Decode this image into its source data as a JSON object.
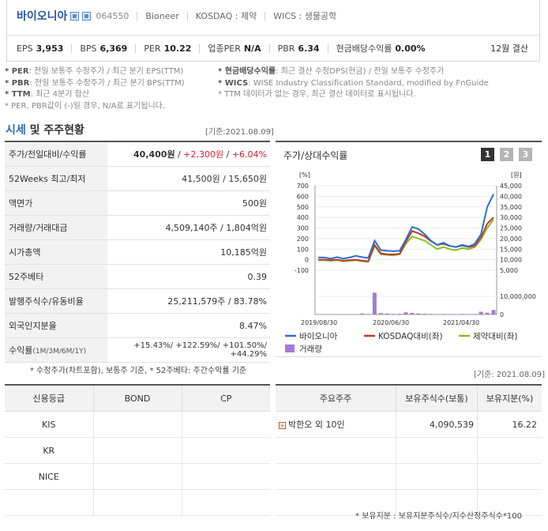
{
  "header": {
    "company_name": "바이오니아",
    "code": "064550",
    "english_name": "Bioneer",
    "market": "KOSDAQ : 제약",
    "wics": "WICS : 생물공학",
    "metrics": [
      {
        "key": "EPS",
        "value": "3,953"
      },
      {
        "key": "BPS",
        "value": "6,369"
      },
      {
        "key": "PER",
        "value": "10.22"
      },
      {
        "key": "업종PER",
        "value": "N/A"
      },
      {
        "key": "PBR",
        "value": "6.34"
      },
      {
        "key": "현금배당수익률",
        "value": "0.00%"
      }
    ],
    "fiscal_year": "12월 결산"
  },
  "notes_left": [
    {
      "bold": "* PER",
      "text": ": 전일 보통주 수정주가 / 최근 분기 EPS(TTM)"
    },
    {
      "bold": "* PBR",
      "text": ": 전일 보통주 수정주가 / 최근 분기 BPS(TTM)"
    },
    {
      "bold": "* TTM",
      "text": ": 최근 4분기 합산"
    },
    {
      "bold": "",
      "text": "* PER, PBR값이 (-)일 경우, N/A로 표기됩니다."
    }
  ],
  "notes_right": [
    {
      "bold": "* 현금배당수익률",
      "text": ": 최근 결산 수정DPS(현금) / 전일 보통주 수정주가"
    },
    {
      "bold": "* WICS",
      "text": ": WISE Industry Classification Standard, modified by FnGuide"
    },
    {
      "bold": "",
      "text": "* TTM 데이터가 없는 경우, 최근 결산 데이터로 표시됩니다."
    }
  ],
  "section": {
    "title_blue": "시세",
    "title_rest": " 및 주주현황",
    "date": "[기준:2021.08.09]"
  },
  "price_table": [
    {
      "key": "주가/전일대비/수익률",
      "v1": "40,400원",
      "v2": "+2,300원",
      "v3": "+6.04%"
    },
    {
      "key": "52Weeks 최고/최저",
      "value": "41,500원 / 15,650원"
    },
    {
      "key": "액면가",
      "value": "500원"
    },
    {
      "key": "거래량/거래대금",
      "value": "4,509,140주 / 1,804억원"
    },
    {
      "key": "시가총액",
      "value": "10,185억원"
    },
    {
      "key": "52주베타",
      "value": "0.39"
    },
    {
      "key": "발행주식수/유동비율",
      "value": "25,211,579주 / 83.78%"
    },
    {
      "key": "외국인지분율",
      "value": "8.47%"
    },
    {
      "key": "수익률",
      "key_small": "(1M/3M/6M/1Y)",
      "value": "+15.43%/ +122.59%/ +101.50%/ +44.29%"
    }
  ],
  "price_footnote": "* 수정주가(차트포함), 보통주 기준, * 52주베타: 주간수익률 기준",
  "chart": {
    "title": "주가/상대수익률",
    "tabs": [
      "1",
      "2",
      "3"
    ],
    "active_tab": 0,
    "left_unit": "[%]",
    "right_unit": "[원]",
    "left_ticks": [
      "700",
      "600",
      "500",
      "400",
      "300",
      "200",
      "100",
      "0",
      "-100"
    ],
    "right_ticks": [
      "45,000",
      "40,000",
      "35,000",
      "30,000",
      "25,000",
      "20,000",
      "15,000",
      "10,000",
      "5,000"
    ],
    "volume_tick_top": "10,000,000",
    "volume_tick_zero": "0",
    "x_labels": [
      "2019/08/30",
      "2020/06/30",
      "2021/04/30"
    ],
    "legend": [
      {
        "name": "바이오니아",
        "color": "#2b6fd4"
      },
      {
        "name": "KOSDAQ대비(좌)",
        "color": "#c0392b"
      },
      {
        "name": "제약대비(좌)",
        "color": "#8bbf1f"
      },
      {
        "name": "거래량",
        "color": "#a07cd8"
      }
    ]
  },
  "chart_data": {
    "type": "line",
    "x_start": "2019/08/30",
    "x_labels": [
      "2019/08/30",
      "2020/06/30",
      "2021/04/30"
    ],
    "left_axis": {
      "label": "[%]",
      "ylim": [
        -100,
        700
      ]
    },
    "right_axis": {
      "label": "[원]",
      "ylim": [
        5000,
        45000
      ]
    },
    "series": [
      {
        "name": "바이오니아",
        "axis": "right",
        "values": [
          11000,
          11000,
          10500,
          11200,
          10500,
          11000,
          11800,
          11200,
          10800,
          19000,
          14500,
          14200,
          14000,
          14200,
          19500,
          25500,
          24500,
          22000,
          19000,
          17000,
          18000,
          16500,
          16000,
          17000,
          16200,
          17500,
          22000,
          35000,
          41000
        ]
      },
      {
        "name": "KOSDAQ대비(좌)",
        "axis": "left",
        "values": [
          0,
          0,
          -5,
          0,
          -10,
          -5,
          0,
          -10,
          -15,
          140,
          60,
          50,
          50,
          55,
          170,
          270,
          250,
          220,
          175,
          140,
          150,
          130,
          120,
          135,
          120,
          130,
          210,
          340,
          400
        ]
      },
      {
        "name": "제약대비(좌)",
        "axis": "left",
        "values": [
          -5,
          -5,
          -10,
          -5,
          -15,
          -10,
          -5,
          -15,
          -20,
          130,
          50,
          45,
          40,
          50,
          150,
          220,
          200,
          180,
          140,
          100,
          120,
          100,
          90,
          110,
          100,
          120,
          190,
          300,
          380
        ]
      },
      {
        "name": "거래량",
        "axis": "volume",
        "values": [
          0,
          0,
          0,
          0,
          0,
          0,
          0,
          500000,
          300000,
          12000000,
          800000,
          500000,
          300000,
          400000,
          1200000,
          900000,
          600000,
          400000,
          300000,
          200000,
          300000,
          200000,
          200000,
          300000,
          200000,
          300000,
          1500000,
          1000000,
          2500000
        ]
      }
    ]
  },
  "date_right": "[기준: 2021.08.09]",
  "credit_table": {
    "headers": [
      "신용등급",
      "BOND",
      "CP"
    ],
    "rows": [
      [
        "KIS",
        "",
        ""
      ],
      [
        "KR",
        "",
        ""
      ],
      [
        "NICE",
        "",
        ""
      ]
    ]
  },
  "shareholder_table": {
    "headers": [
      "주요주주",
      "보유주식수(보통)",
      "보유지분(%)"
    ],
    "rows": [
      {
        "name": "박한오 외 10인",
        "shares": "4,090,539",
        "pct": "16.22"
      },
      {
        "name": "",
        "shares": "",
        "pct": ""
      },
      {
        "name": "",
        "shares": "",
        "pct": ""
      },
      {
        "name": "",
        "shares": "",
        "pct": ""
      }
    ]
  },
  "share_footnote": "* 보유지분 : 보유지분주식수/지수산정주식수*100"
}
